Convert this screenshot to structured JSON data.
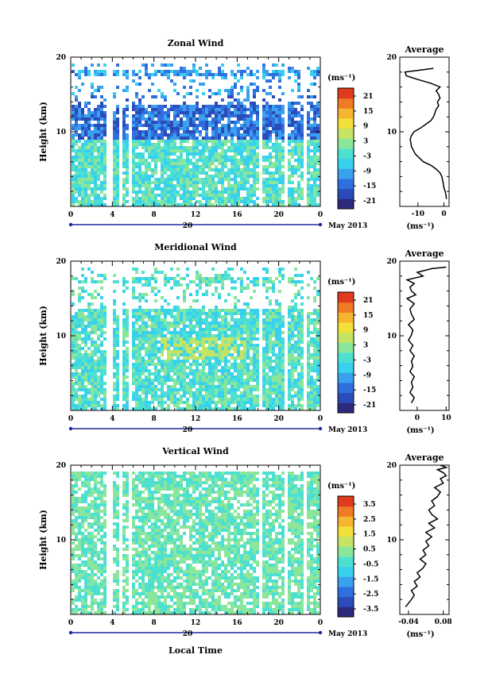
{
  "chart_data": [
    {
      "type": "heatmap",
      "title": "Zonal Wind",
      "ylabel": "Height (km)",
      "xlabel": "",
      "ylim": [
        0,
        20
      ],
      "yticks": [
        10,
        20
      ],
      "xlim": [
        0,
        24
      ],
      "xtick_labels": [
        "0",
        "4",
        "8",
        "12",
        "16",
        "20",
        "0"
      ],
      "date_label": "20",
      "month_label": "May 2013",
      "colorbar": {
        "unit": "(ms⁻¹)",
        "ticks": [
          "21",
          "15",
          "9",
          "3",
          "-3",
          "-9",
          "-15",
          "-21"
        ]
      },
      "profile": {
        "title": "Average",
        "xlabel": "(ms⁻¹)",
        "xticks": [
          "-10",
          "0"
        ],
        "xlim": [
          -17,
          2
        ],
        "x": [
          1.0,
          0.8,
          0.5,
          0.0,
          -0.2,
          -0.5,
          -0.8,
          -1.5,
          -3.0,
          -5.0,
          -8.0,
          -11.0,
          -12.5,
          -13.0,
          -12.5,
          -11.5,
          -9.0,
          -7.0,
          -5.0,
          -4.0,
          -3.5,
          -3.0,
          -2.0,
          -2.5,
          -1.5,
          -2.0,
          -3.0,
          -1.5,
          -5.0,
          -10.0,
          -14.5,
          -15.0,
          -4.0
        ],
        "y": [
          1.0,
          1.5,
          2.0,
          2.5,
          3.0,
          3.5,
          4.0,
          4.5,
          5.0,
          5.5,
          6.0,
          7.0,
          8.0,
          9.0,
          9.5,
          10.0,
          10.5,
          11.0,
          11.5,
          12.0,
          12.5,
          13.0,
          13.5,
          14.0,
          14.5,
          15.0,
          15.5,
          16.0,
          16.5,
          17.0,
          17.5,
          18.0,
          18.5
        ]
      }
    },
    {
      "type": "heatmap",
      "title": "Meridional Wind",
      "ylabel": "Height (km)",
      "xlabel": "",
      "ylim": [
        0,
        20
      ],
      "yticks": [
        10,
        20
      ],
      "xlim": [
        0,
        24
      ],
      "xtick_labels": [
        "0",
        "4",
        "8",
        "12",
        "16",
        "20",
        "0"
      ],
      "date_label": "20",
      "month_label": "May 2013",
      "colorbar": {
        "unit": "(ms⁻¹)",
        "ticks": [
          "21",
          "15",
          "9",
          "3",
          "-3",
          "-9",
          "-15",
          "-21"
        ]
      },
      "profile": {
        "title": "Average",
        "xlabel": "(ms⁻¹)",
        "xticks": [
          "0",
          "10"
        ],
        "xlim": [
          -6,
          11
        ],
        "x": [
          -2.0,
          -1.0,
          -2.5,
          -1.5,
          -2.0,
          -1.0,
          -2.5,
          -1.5,
          -2.0,
          -1.0,
          -2.5,
          -1.5,
          -3.0,
          -2.0,
          -1.5,
          -3.0,
          -1.0,
          -2.0,
          -2.5,
          -1.0,
          -3.5,
          -0.5,
          -2.0,
          -2.5,
          -1.0,
          -3.5,
          2.0,
          0.0,
          5.0,
          10.0
        ],
        "y": [
          1.0,
          1.7,
          2.4,
          3.1,
          3.8,
          4.5,
          5.2,
          5.9,
          6.6,
          7.3,
          8.0,
          8.7,
          9.4,
          10.1,
          10.8,
          11.5,
          12.2,
          12.9,
          13.6,
          14.3,
          15.0,
          15.5,
          16.0,
          16.5,
          17.0,
          17.5,
          18.0,
          18.5,
          19.0,
          19.2
        ]
      }
    },
    {
      "type": "heatmap",
      "title": "Vertical Wind",
      "ylabel": "Height (km)",
      "xlabel": "Local Time",
      "ylim": [
        0,
        20
      ],
      "yticks": [
        10,
        20
      ],
      "xlim": [
        0,
        24
      ],
      "xtick_labels": [
        "0",
        "4",
        "8",
        "12",
        "16",
        "20",
        "0"
      ],
      "date_label": "20",
      "month_label": "May 2013",
      "colorbar": {
        "unit": "(ms⁻¹)",
        "ticks": [
          "3.5",
          "2.5",
          "1.5",
          "0.5",
          "-0.5",
          "-1.5",
          "-2.5",
          "-3.5"
        ]
      },
      "profile": {
        "title": "Average",
        "xlabel": "(ms⁻¹)",
        "xticks": [
          "-0.04",
          "0.08"
        ],
        "xlim": [
          -0.07,
          0.1
        ],
        "x": [
          -0.05,
          -0.04,
          -0.03,
          -0.02,
          -0.03,
          -0.01,
          -0.02,
          0.0,
          -0.01,
          0.01,
          0.02,
          0.0,
          0.02,
          0.01,
          0.03,
          0.02,
          0.04,
          0.02,
          0.05,
          0.03,
          0.06,
          0.04,
          0.03,
          0.05,
          0.04,
          0.06,
          0.07,
          0.05,
          0.08,
          0.07,
          0.09,
          0.08,
          0.06,
          0.09,
          0.07
        ],
        "y": [
          1.0,
          1.5,
          2.0,
          2.6,
          3.2,
          3.8,
          4.4,
          5.0,
          5.6,
          6.2,
          6.8,
          7.4,
          8.0,
          8.6,
          9.2,
          9.8,
          10.4,
          11.0,
          11.6,
          12.2,
          12.8,
          13.4,
          14.0,
          14.6,
          15.2,
          15.8,
          16.4,
          17.0,
          17.6,
          18.2,
          18.6,
          19.0,
          19.4,
          19.7,
          20.0
        ]
      }
    }
  ]
}
